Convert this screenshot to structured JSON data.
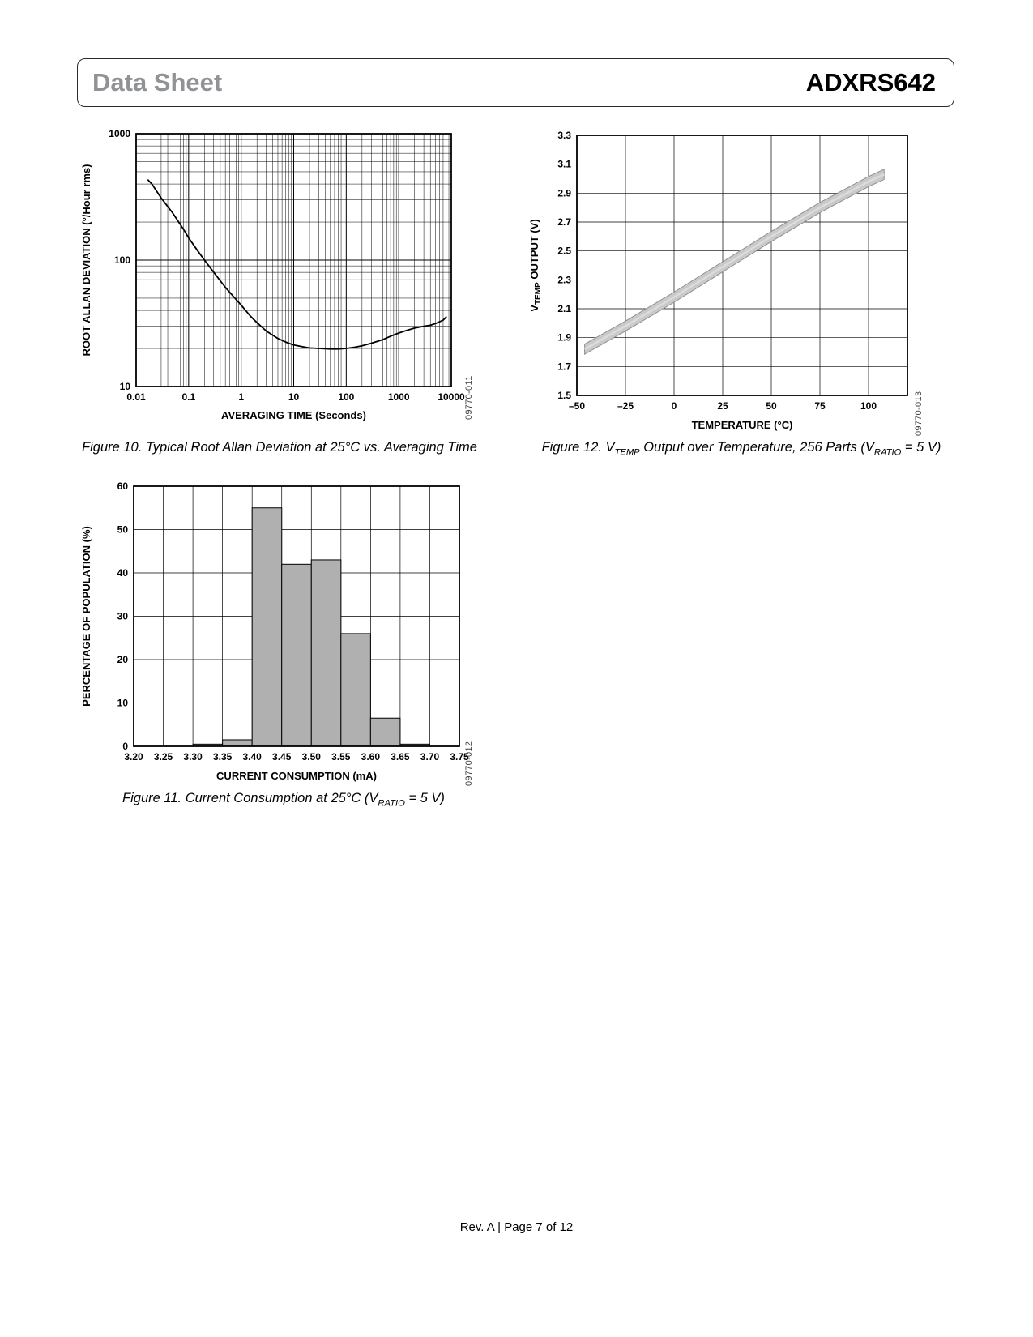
{
  "header": {
    "doc_type": "Data Sheet",
    "part_number": "ADXRS642"
  },
  "footer": {
    "text": "Rev. A | Page 7 of 12"
  },
  "chart_data": [
    {
      "id": "allan-deviation",
      "type": "line",
      "figure_code": "09770-011",
      "caption_parts": [
        {
          "t": "Figure 10. Typical Root Allan Deviation at 25°C vs. Averaging Time"
        }
      ],
      "xlabel": "AVERAGING TIME (Seconds)",
      "ylabel_parts": [
        {
          "t": "ROOT ALLAN DEVIATION (°/Hour rms)"
        }
      ],
      "x_scale": "log",
      "y_scale": "log",
      "xlim": [
        0.01,
        10000
      ],
      "ylim": [
        10,
        1000
      ],
      "x_ticks": [
        0.01,
        0.1,
        1,
        10,
        100,
        1000,
        10000
      ],
      "x_tick_labels": [
        "0.01",
        "0.1",
        "1",
        "10",
        "100",
        "1000",
        "10000"
      ],
      "y_ticks": [
        10,
        100,
        1000
      ],
      "y_tick_labels": [
        "10",
        "100",
        "1000"
      ],
      "grid": "log-log full minor grid",
      "points": [
        [
          0.017,
          430
        ],
        [
          0.02,
          400
        ],
        [
          0.03,
          310
        ],
        [
          0.05,
          235
        ],
        [
          0.08,
          175
        ],
        [
          0.1,
          150
        ],
        [
          0.15,
          118
        ],
        [
          0.2,
          100
        ],
        [
          0.3,
          80
        ],
        [
          0.5,
          61
        ],
        [
          0.7,
          52
        ],
        [
          1,
          44
        ],
        [
          1.5,
          36
        ],
        [
          2,
          32
        ],
        [
          3,
          27.5
        ],
        [
          5,
          24
        ],
        [
          7,
          22.5
        ],
        [
          10,
          21.3
        ],
        [
          15,
          20.6
        ],
        [
          20,
          20.2
        ],
        [
          30,
          20.0
        ],
        [
          50,
          19.8
        ],
        [
          70,
          19.8
        ],
        [
          100,
          20.0
        ],
        [
          150,
          20.5
        ],
        [
          200,
          21
        ],
        [
          300,
          22
        ],
        [
          500,
          23.5
        ],
        [
          700,
          25
        ],
        [
          1000,
          26.5
        ],
        [
          1500,
          28
        ],
        [
          2000,
          29
        ],
        [
          3000,
          30
        ],
        [
          4000,
          30.5
        ],
        [
          5000,
          31.5
        ],
        [
          7000,
          33.5
        ],
        [
          8000,
          35.5
        ]
      ]
    },
    {
      "id": "current-consumption",
      "type": "bar",
      "figure_code": "09770-012",
      "caption_parts": [
        {
          "t": "Figure 11. Current Consumption at 25°C (V"
        },
        {
          "t": "RATIO",
          "sub": true
        },
        {
          "t": " = 5 V)"
        }
      ],
      "xlabel": "CURRENT CONSUMPTION (mA)",
      "ylabel_parts": [
        {
          "t": "PERCENTAGE OF POPULATION (%)"
        }
      ],
      "x_tick_labels": [
        "3.20",
        "3.25",
        "3.30",
        "3.35",
        "3.40",
        "3.45",
        "3.50",
        "3.55",
        "3.60",
        "3.65",
        "3.70",
        "3.75"
      ],
      "ylim": [
        0,
        60
      ],
      "y_ticks": [
        0,
        10,
        20,
        30,
        40,
        50,
        60
      ],
      "bin_values": [
        0,
        0,
        0.5,
        1.5,
        55,
        42,
        43,
        26,
        6.5,
        0.5,
        0
      ],
      "bar_color": "#b0b0b0"
    },
    {
      "id": "vtemp-output",
      "type": "band",
      "figure_code": "09770-013",
      "caption_parts": [
        {
          "t": "Figure 12. V"
        },
        {
          "t": "TEMP",
          "sub": true
        },
        {
          "t": " Output over Temperature, 256 Parts (V"
        },
        {
          "t": "RATIO",
          "sub": true
        },
        {
          "t": " = 5 V)"
        }
      ],
      "xlabel": "TEMPERATURE (°C)",
      "ylabel_parts": [
        {
          "t": "V"
        },
        {
          "t": "TEMP",
          "sub": true
        },
        {
          "t": " OUTPUT (V)"
        }
      ],
      "xlim": [
        -50,
        120
      ],
      "ylim": [
        1.5,
        3.3
      ],
      "x_ticks": [
        -50,
        -25,
        0,
        25,
        50,
        75,
        100
      ],
      "x_tick_labels": [
        "–50",
        "–25",
        "0",
        "25",
        "50",
        "75",
        "100"
      ],
      "y_ticks": [
        1.5,
        1.7,
        1.9,
        2.1,
        2.3,
        2.5,
        2.7,
        2.9,
        3.1,
        3.3
      ],
      "y_tick_labels": [
        "1.5",
        "1.7",
        "1.9",
        "2.1",
        "2.3",
        "2.5",
        "2.7",
        "2.9",
        "3.1",
        "3.3"
      ],
      "band_center": [
        [
          -46,
          1.82
        ],
        [
          -25,
          1.98
        ],
        [
          0,
          2.18
        ],
        [
          25,
          2.39
        ],
        [
          50,
          2.6
        ],
        [
          75,
          2.8
        ],
        [
          100,
          2.98
        ],
        [
          108,
          3.03
        ]
      ],
      "band_halfwidth": 0.035,
      "band_color": "#c9c9c9"
    }
  ]
}
